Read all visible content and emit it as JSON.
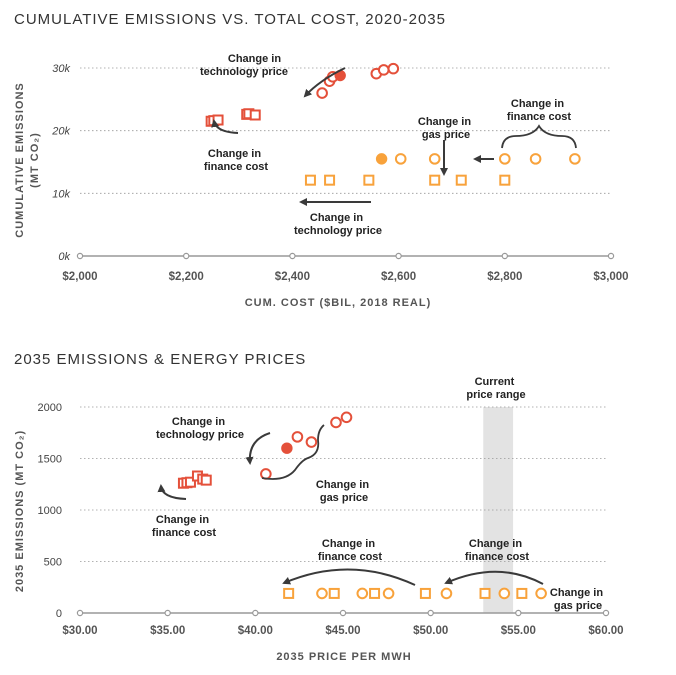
{
  "colors": {
    "red": "#e4503a",
    "orange": "#f8a23b",
    "arrow": "#3a3a3a",
    "band": "#e3e3e3"
  },
  "chart_data": [
    {
      "type": "scatter",
      "title": "CUMULATIVE EMISSIONS VS. TOTAL COST, 2020-2035",
      "xlabel": "CUM. COST ($BIL, 2018 REAL)",
      "ylabel": "CUMULATIVE EMISSIONS",
      "ylabel_unit": "(MT CO₂)",
      "xlim": [
        2000,
        3000
      ],
      "ylim": [
        0,
        30000
      ],
      "x_ticks": [
        2000,
        2200,
        2400,
        2600,
        2800,
        3000
      ],
      "x_tick_labels": [
        "$2,000",
        "$2,200",
        "$2,400",
        "$2,600",
        "$2,800",
        "$3,000"
      ],
      "y_ticks": [
        0,
        10000,
        20000,
        30000
      ],
      "y_tick_labels": [
        "0k",
        "10k",
        "20k",
        "30k"
      ],
      "grid": true,
      "series": [
        {
          "color": "red",
          "marker": "square",
          "points": [
            [
              2247,
              21500
            ],
            [
              2252,
              21600
            ],
            [
              2260,
              21700
            ],
            [
              2314,
              22600
            ],
            [
              2318,
              22700
            ],
            [
              2330,
              22500
            ]
          ]
        },
        {
          "color": "red",
          "marker": "circle",
          "points": [
            [
              2456,
              26000
            ],
            [
              2470,
              27900
            ],
            [
              2476,
              28600
            ],
            [
              2558,
              29100
            ],
            [
              2572,
              29700
            ],
            [
              2590,
              29900
            ]
          ]
        },
        {
          "color": "red",
          "marker": "circle-filled",
          "points": [
            [
              2490,
              28800
            ]
          ]
        },
        {
          "color": "orange",
          "marker": "square",
          "points": [
            [
              2434,
              12100
            ],
            [
              2470,
              12100
            ],
            [
              2544,
              12100
            ],
            [
              2668,
              12100
            ],
            [
              2718,
              12100
            ],
            [
              2800,
              12100
            ]
          ]
        },
        {
          "color": "orange",
          "marker": "circle",
          "points": [
            [
              2604,
              15500
            ],
            [
              2668,
              15500
            ],
            [
              2800,
              15500
            ],
            [
              2858,
              15500
            ],
            [
              2932,
              15500
            ]
          ]
        },
        {
          "color": "orange",
          "marker": "circle-filled",
          "points": [
            [
              2568,
              15500
            ]
          ]
        }
      ],
      "annotations": [
        {
          "line1": "Change in",
          "line2": "technology price"
        },
        {
          "line1": "Change in",
          "line2": "finance cost"
        },
        {
          "line1": "Change in",
          "line2": "gas price"
        },
        {
          "line1": "Change in",
          "line2": "finance cost"
        },
        {
          "line1": "Change in",
          "line2": "technology price"
        }
      ]
    },
    {
      "type": "scatter",
      "title": "2035 EMISSIONS & ENERGY PRICES",
      "xlabel": "2035 PRICE PER MWH",
      "ylabel": "2035 EMISSIONS (MT CO₂)",
      "xlim": [
        30,
        60
      ],
      "ylim": [
        0,
        2000
      ],
      "x_ticks": [
        30,
        35,
        40,
        45,
        50,
        55,
        60
      ],
      "x_tick_labels": [
        "$30.00",
        "$35.00",
        "$40.00",
        "$45.00",
        "$50.00",
        "$55.00",
        "$60.00"
      ],
      "y_ticks": [
        0,
        500,
        1000,
        1500,
        2000
      ],
      "y_tick_labels": [
        "0",
        "500",
        "1000",
        "1500",
        "2000"
      ],
      "grid": true,
      "band": {
        "x": [
          53.0,
          54.7
        ],
        "label1": "Current",
        "label2": "price range"
      },
      "series": [
        {
          "color": "red",
          "marker": "square",
          "points": [
            [
              35.9,
              1260
            ],
            [
              36.1,
              1265
            ],
            [
              36.3,
              1270
            ],
            [
              36.7,
              1330
            ],
            [
              37.0,
              1300
            ],
            [
              37.2,
              1290
            ]
          ]
        },
        {
          "color": "red",
          "marker": "circle",
          "points": [
            [
              40.6,
              1350
            ],
            [
              42.4,
              1710
            ],
            [
              43.2,
              1660
            ],
            [
              44.6,
              1850
            ],
            [
              45.2,
              1900
            ]
          ]
        },
        {
          "color": "red",
          "marker": "circle-filled",
          "points": [
            [
              41.8,
              1600
            ]
          ]
        },
        {
          "color": "orange",
          "marker": "square",
          "points": [
            [
              41.9,
              190
            ],
            [
              44.5,
              190
            ],
            [
              46.8,
              190
            ],
            [
              49.7,
              190
            ],
            [
              53.1,
              190
            ],
            [
              55.2,
              190
            ]
          ]
        },
        {
          "color": "orange",
          "marker": "circle",
          "points": [
            [
              43.8,
              190
            ],
            [
              46.1,
              190
            ],
            [
              47.6,
              190
            ],
            [
              50.9,
              190
            ],
            [
              54.2,
              190
            ],
            [
              56.3,
              190
            ]
          ]
        }
      ],
      "annotations": [
        {
          "line1": "Change in",
          "line2": "technology price"
        },
        {
          "line1": "Change in",
          "line2": "gas price"
        },
        {
          "line1": "Change in",
          "line2": "finance cost"
        },
        {
          "line1": "Change in",
          "line2": "finance cost"
        },
        {
          "line1": "Change in",
          "line2": "finance cost"
        },
        {
          "line1": "Change in",
          "line2": "gas price"
        }
      ]
    }
  ]
}
